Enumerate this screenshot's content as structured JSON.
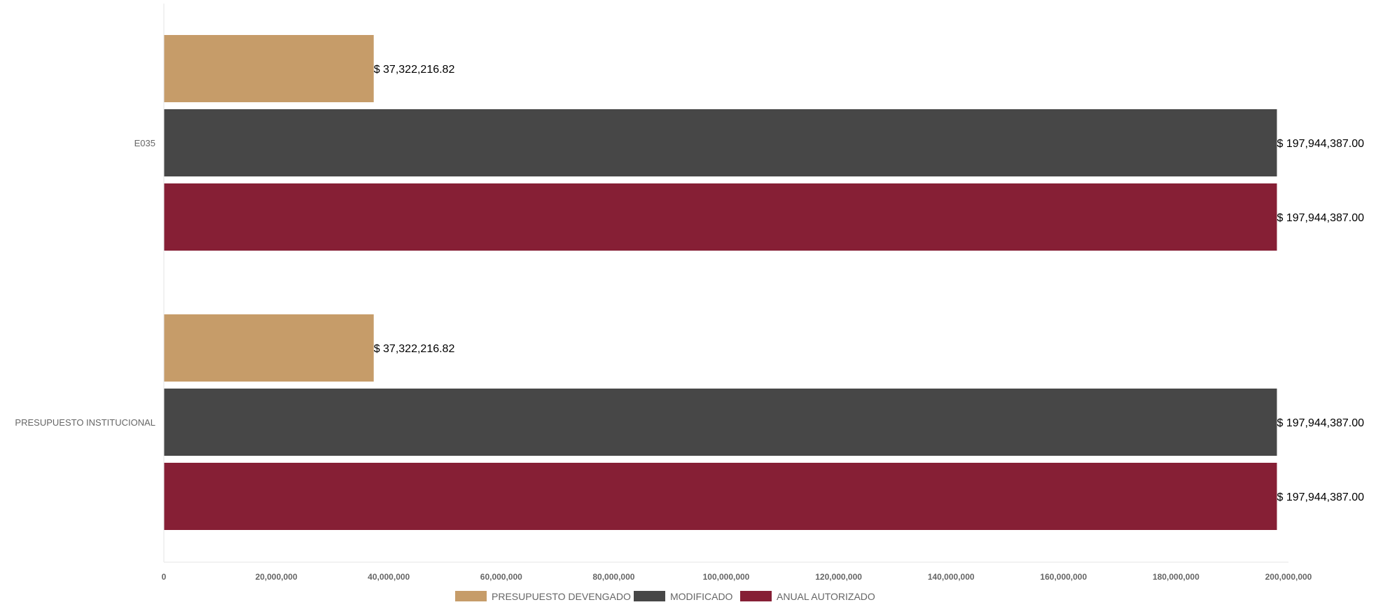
{
  "chart_data": {
    "type": "bar",
    "orientation": "horizontal",
    "title": "",
    "xlabel": "",
    "ylabel": "",
    "categories": [
      "E035",
      "PRESUPUESTO INSTITUCIONAL"
    ],
    "series": [
      {
        "name": "PRESUPUESTO DEVENGADO",
        "color": "#c69c69",
        "values": [
          37322216.82,
          37322216.82
        ],
        "labels": [
          "$ 37,322,216.82",
          "$ 37,322,216.82"
        ]
      },
      {
        "name": "MODIFICADO",
        "color": "#474747",
        "values": [
          197944387.0,
          197944387.0
        ],
        "labels": [
          "$ 197,944,387.00",
          "$ 197,944,387.00"
        ]
      },
      {
        "name": "ANUAL AUTORIZADO",
        "color": "#861f35",
        "values": [
          197944387.0,
          197944387.0
        ],
        "labels": [
          "$ 197,944,387.00",
          "$ 197,944,387.00"
        ]
      }
    ],
    "xlim": [
      0,
      200000000
    ],
    "xticks": [
      0,
      20000000,
      40000000,
      60000000,
      80000000,
      100000000,
      120000000,
      140000000,
      160000000,
      180000000,
      200000000
    ],
    "xtick_labels": [
      "0",
      "20,000,000",
      "40,000,000",
      "60,000,000",
      "80,000,000",
      "100,000,000",
      "120,000,000",
      "140,000,000",
      "160,000,000",
      "180,000,000",
      "200,000,000"
    ],
    "grid": false,
    "legend_position": "bottom"
  }
}
